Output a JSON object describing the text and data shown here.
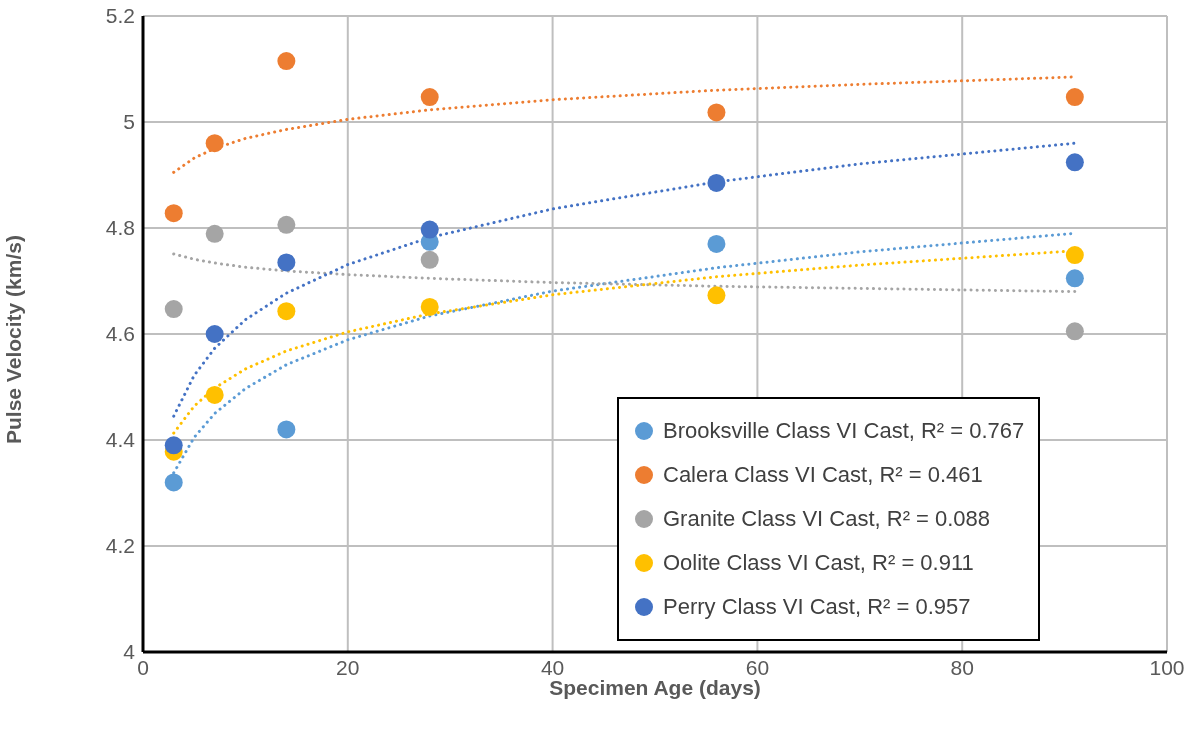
{
  "chart_data": {
    "type": "scatter",
    "xlabel": "Specimen Age (days)",
    "ylabel": "Pulse Velocity (km/s)",
    "xlim": [
      0,
      100
    ],
    "xticks": [
      0,
      20,
      40,
      60,
      80,
      100
    ],
    "ylim": [
      4,
      5.2
    ],
    "yticks": [
      4,
      4.2,
      4.4,
      4.6,
      4.8,
      5,
      5.2
    ],
    "grid": true,
    "legend": "bottom right",
    "marker": "circle",
    "x": [
      3,
      7,
      14,
      28,
      56,
      91
    ],
    "series": [
      {
        "name": "Brooksville Class VI Cast, R² = 0.767",
        "color": "#5b9bd5",
        "values": [
          4.32,
          null,
          4.42,
          4.774,
          4.77,
          4.705
        ]
      },
      {
        "name": "Calera Class VI Cast, R² = 0.461",
        "color": "#ed7d31",
        "values": [
          4.828,
          4.96,
          5.115,
          5.047,
          5.018,
          5.047
        ]
      },
      {
        "name": "Granite Class VI Cast, R² = 0.088",
        "color": "#a5a5a5",
        "values": [
          4.647,
          4.789,
          4.806,
          4.74,
          null,
          4.605
        ]
      },
      {
        "name": "Oolite Class VI Cast, R² = 0.911",
        "color": "#ffc000",
        "values": [
          4.378,
          4.485,
          4.643,
          4.651,
          4.673,
          4.749
        ]
      },
      {
        "name": "Perry Class VI Cast, R² = 0.957",
        "color": "#4472c4",
        "values": [
          4.39,
          4.6,
          4.735,
          4.797,
          4.885,
          4.924
        ]
      },
      {
        "type": "line",
        "line_style": "dotted",
        "marker": "none",
        "color": "#5b9bd5",
        "x": [
          3,
          5,
          7,
          10,
          14,
          20,
          28,
          40,
          56,
          70,
          91
        ],
        "values": [
          4.338,
          4.405,
          4.45,
          4.497,
          4.542,
          4.589,
          4.634,
          4.681,
          4.725,
          4.755,
          4.79
        ]
      },
      {
        "type": "line",
        "line_style": "dotted",
        "marker": "none",
        "color": "#ed7d31",
        "x": [
          3,
          5,
          7,
          10,
          14,
          20,
          28,
          40,
          56,
          70,
          91
        ],
        "values": [
          4.905,
          4.932,
          4.95,
          4.969,
          4.986,
          5.005,
          5.023,
          5.042,
          5.06,
          5.071,
          5.085
        ]
      },
      {
        "type": "line",
        "line_style": "dotted",
        "marker": "none",
        "color": "#a5a5a5",
        "x": [
          3,
          5,
          7,
          10,
          14,
          20,
          28,
          40,
          56,
          70,
          91
        ],
        "values": [
          4.751,
          4.741,
          4.734,
          4.726,
          4.719,
          4.712,
          4.705,
          4.697,
          4.69,
          4.686,
          4.68
        ]
      },
      {
        "type": "line",
        "line_style": "dotted",
        "marker": "none",
        "color": "#ffc000",
        "x": [
          3,
          5,
          7,
          10,
          14,
          20,
          28,
          40,
          56,
          70,
          91
        ],
        "values": [
          4.413,
          4.464,
          4.498,
          4.534,
          4.568,
          4.604,
          4.638,
          4.674,
          4.708,
          4.73,
          4.757
        ]
      },
      {
        "type": "line",
        "line_style": "dotted",
        "marker": "none",
        "color": "#4472c4",
        "x": [
          3,
          5,
          7,
          10,
          14,
          20,
          28,
          40,
          56,
          70,
          91
        ],
        "values": [
          4.445,
          4.522,
          4.573,
          4.627,
          4.677,
          4.731,
          4.782,
          4.836,
          4.887,
          4.921,
          4.96
        ]
      }
    ]
  }
}
